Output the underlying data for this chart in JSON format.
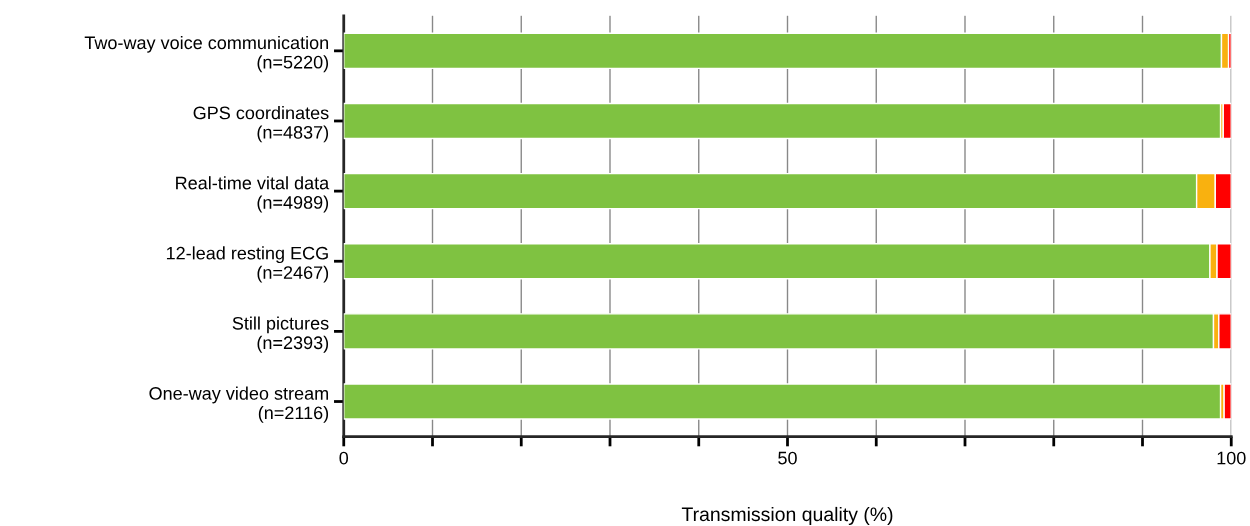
{
  "chart_data": {
    "type": "bar",
    "orientation": "horizontal",
    "stacked": true,
    "xlabel": "Transmission quality (%)",
    "categories": [
      "Two-way voice communication\n(n=5220)",
      "GPS coordinates\n(n=4837)",
      "Real-time vital data\n(n=4989)",
      "12-lead resting ECG\n(n=2467)",
      "Still pictures\n(n=2393)",
      "One-way video stream\n(n=2116)"
    ],
    "series": [
      {
        "color": "#7fc241",
        "values": [
          98.9,
          98.8,
          96.1,
          97.6,
          98.0,
          98.8
        ]
      },
      {
        "color": "#f9b10f",
        "values": [
          0.8,
          0.3,
          2.1,
          0.8,
          0.6,
          0.4
        ]
      },
      {
        "color": "#ff0000",
        "values": [
          0.3,
          0.9,
          1.8,
          1.6,
          1.4,
          0.8
        ]
      }
    ],
    "xlim": [
      0,
      100
    ],
    "xticks": [
      0,
      {
        "value": 10,
        "label": null
      },
      {
        "value": 20,
        "label": null
      },
      {
        "value": 30,
        "label": null
      },
      {
        "value": 40,
        "label": null
      },
      50,
      {
        "value": 60,
        "label": null
      },
      {
        "value": 70,
        "label": null
      },
      {
        "value": 80,
        "label": null
      },
      {
        "value": 90,
        "label": null
      },
      100
    ],
    "grid": "x"
  }
}
